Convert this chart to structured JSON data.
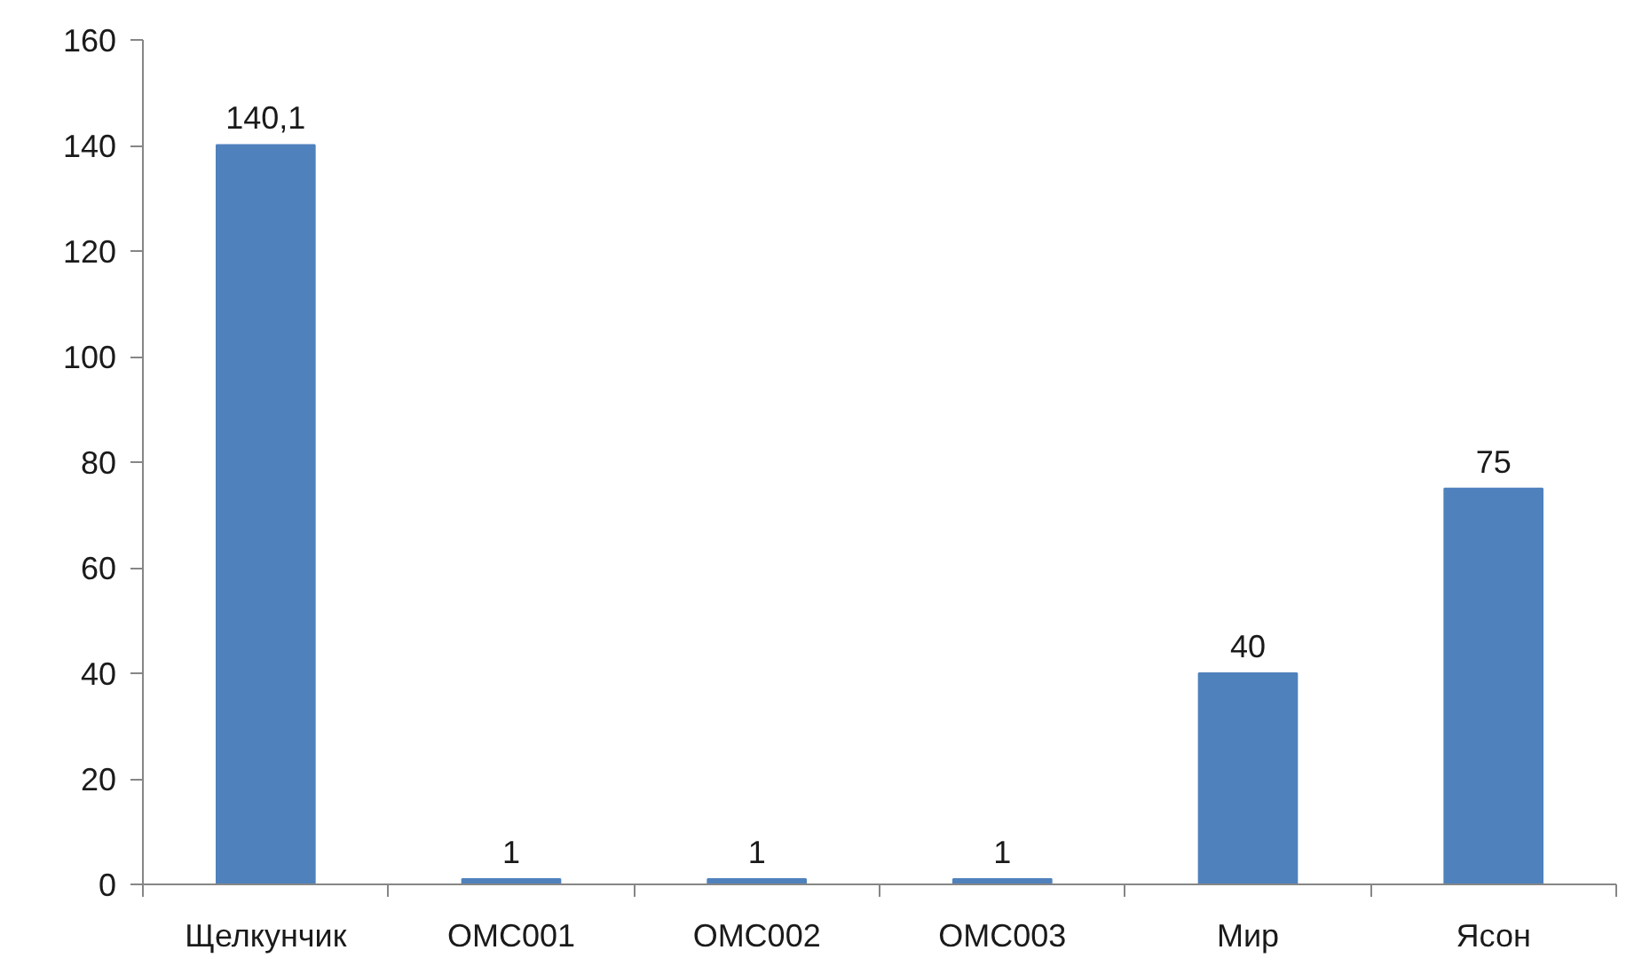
{
  "chart_data": {
    "type": "bar",
    "categories": [
      "Щелкунчик",
      "OMC001",
      "OMC002",
      "OMC003",
      "Мир",
      "Ясон"
    ],
    "values": [
      140.1,
      1,
      1,
      1,
      40,
      75
    ],
    "color": "#4f81bd",
    "value_labels": [
      "140,1",
      "1",
      "1",
      "1",
      "40",
      "75"
    ],
    "ylim": [
      0,
      160
    ],
    "yticks": [
      0,
      20,
      40,
      60,
      80,
      100,
      120,
      140,
      160
    ],
    "grid": false
  }
}
